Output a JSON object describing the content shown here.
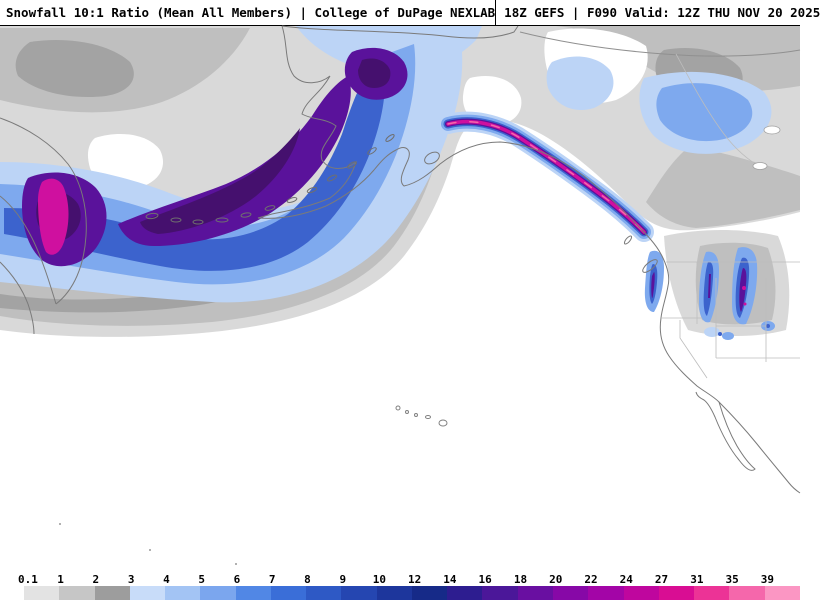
{
  "header": {
    "title_left": "Snowfall 10:1 Ratio (Mean All Members) | College of DuPage NEXLAB",
    "title_right": "18Z GEFS | F090 Valid: 12Z THU NOV 20 2025"
  },
  "legend": {
    "labels": [
      "0.1",
      "1",
      "2",
      "3",
      "4",
      "5",
      "6",
      "7",
      "8",
      "9",
      "10",
      "12",
      "14",
      "16",
      "18",
      "20",
      "22",
      "24",
      "27",
      "31",
      "35",
      "39"
    ],
    "colors": [
      "#e3e3e3",
      "#c6c6c6",
      "#9d9d9d",
      "#c8dcf9",
      "#a3c4f4",
      "#7ba6ee",
      "#5187e5",
      "#3a6ed8",
      "#2e59c5",
      "#2546b1",
      "#1d369c",
      "#162a88",
      "#2d1d90",
      "#4b1799",
      "#690fa1",
      "#8708a7",
      "#a305a7",
      "#bf069e",
      "#d90d93",
      "#ec3396",
      "#f567ab",
      "#fb96c3"
    ]
  }
}
